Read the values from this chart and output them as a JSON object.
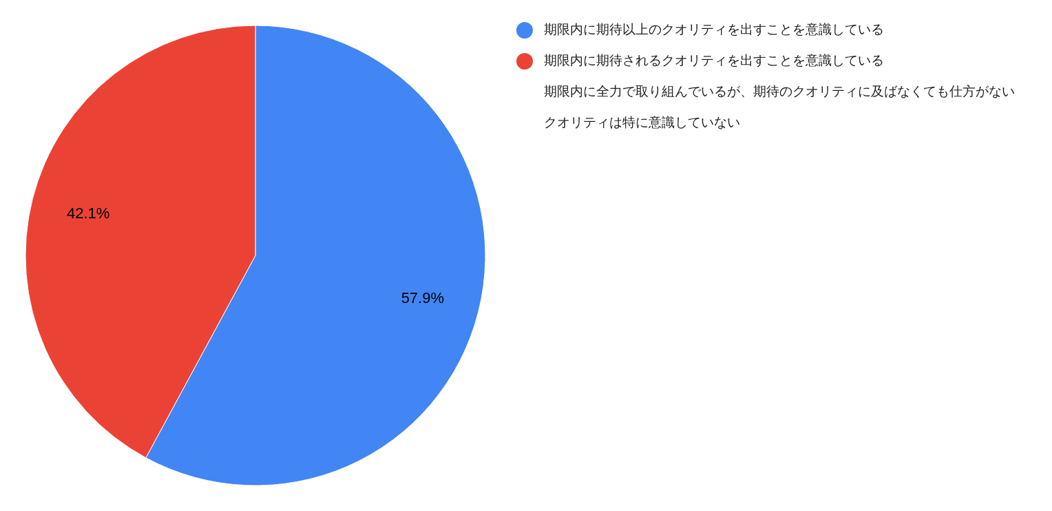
{
  "chart_data": {
    "type": "pie",
    "categories": [
      "期限内に期待以上のクオリティを出すことを意識している",
      "期限内に期待されるクオリティを出すことを意識している",
      "期限内に全力で取り組んでいるが、期待のクオリティに及ばなくても仕方がない",
      "クオリティは特に意識していない"
    ],
    "values": [
      57.9,
      42.1,
      0,
      0
    ],
    "colors": [
      "#4285f4",
      "#ea4335",
      null,
      null
    ],
    "value_labels": [
      "57.9%",
      "42.1%",
      null,
      null
    ],
    "legend": "right"
  }
}
